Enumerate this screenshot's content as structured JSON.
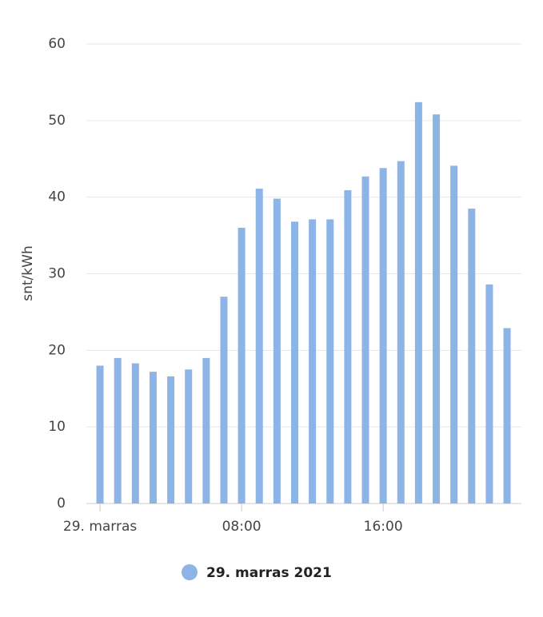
{
  "chart_data": {
    "type": "bar",
    "y_label": "snt/kWh",
    "categories": [
      "29. marras",
      null,
      null,
      null,
      null,
      null,
      null,
      null,
      "08:00",
      null,
      null,
      null,
      null,
      null,
      null,
      null,
      "16:00",
      null,
      null,
      null,
      null,
      null,
      null,
      null
    ],
    "series": [
      {
        "name": "29. marras 2021",
        "color": "#8db4e7",
        "values": [
          18.0,
          19.0,
          18.3,
          17.2,
          16.6,
          17.5,
          19.0,
          27.0,
          36.0,
          41.1,
          39.8,
          36.8,
          37.1,
          37.1,
          40.9,
          42.7,
          43.8,
          44.7,
          52.4,
          50.8,
          44.1,
          38.5,
          28.6,
          22.9
        ]
      }
    ],
    "ylim": [
      0,
      60
    ],
    "yticks": [
      0,
      10,
      20,
      30,
      40,
      50,
      60
    ],
    "grid": true
  }
}
